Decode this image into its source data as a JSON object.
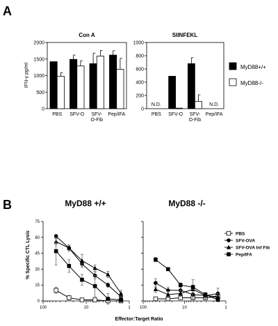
{
  "panels": {
    "a": "A",
    "b": "B"
  },
  "chart_data": [
    {
      "type": "bar",
      "title": "Con A",
      "ylabel": "IFN-γ pg/ml",
      "ylim": [
        0,
        2000
      ],
      "yticks": [
        0,
        500,
        1000,
        1500,
        2000
      ],
      "categories": [
        "PBS",
        "SFV-O",
        "SFV-\nO-Fib",
        "Pep/IFA"
      ],
      "series": [
        {
          "name": "MyD88+/+",
          "color": "#000000",
          "values": [
            1420,
            1490,
            1360,
            1620
          ],
          "errors": [
            0,
            130,
            320,
            130
          ]
        },
        {
          "name": "MyD88-/-",
          "color": "#ffffff",
          "values": [
            980,
            1290,
            1590,
            1190
          ],
          "errors": [
            110,
            160,
            170,
            330
          ]
        }
      ]
    },
    {
      "type": "bar",
      "title": "SIINFEKL",
      "ylim": [
        0,
        1000
      ],
      "yticks": [
        0,
        200,
        400,
        600,
        800,
        1000
      ],
      "categories": [
        "PBS",
        "SFV-O",
        "SFV-\nO-Fib",
        "Pep/IFA"
      ],
      "na_label": "N.D.",
      "series": [
        {
          "name": "MyD88+/+",
          "color": "#000000",
          "values": [
            null,
            490,
            680,
            null
          ],
          "errors": [
            0,
            0,
            90,
            0
          ]
        },
        {
          "name": "MyD88-/-",
          "color": "#ffffff",
          "values": [
            null,
            8,
            110,
            null
          ],
          "errors": [
            0,
            0,
            100,
            0
          ]
        }
      ]
    },
    {
      "type": "line",
      "title": "MyD88 +/+",
      "xlabel": "Effector:Target Ratio",
      "ylabel": "% Specific CTL Lysis",
      "xscale": "log",
      "xreversed": true,
      "xlim": [
        100,
        1
      ],
      "ylim": [
        0,
        75
      ],
      "yticks": [
        0,
        15,
        30,
        45,
        60,
        75
      ],
      "xticks": [
        100,
        10,
        1
      ],
      "x": [
        50,
        25,
        12.5,
        6.25,
        3.125,
        1.56
      ],
      "series": [
        {
          "name": "PBS",
          "marker": "square-open",
          "values": [
            10,
            3,
            1,
            1,
            0,
            0
          ],
          "errors": [
            3,
            2,
            1,
            1,
            1,
            1
          ]
        },
        {
          "name": "SFV-OVA",
          "marker": "circle",
          "values": [
            61,
            50,
            35,
            24,
            15,
            4
          ],
          "errors": [
            2,
            2,
            3,
            3,
            2,
            2
          ]
        },
        {
          "name": "SFV-OVA Inf Fib",
          "marker": "triangle",
          "values": [
            56,
            50,
            38,
            31,
            25,
            7
          ],
          "errors": [
            3,
            3,
            6,
            3,
            3,
            3
          ]
        },
        {
          "name": "Pep/IFA",
          "marker": "square",
          "values": [
            47,
            33,
            20,
            14,
            2,
            1
          ],
          "errors": [
            13,
            6,
            5,
            10,
            5,
            2
          ]
        }
      ]
    },
    {
      "type": "line",
      "title": "MyD88 -/-",
      "xscale": "log",
      "xreversed": true,
      "xlim": [
        100,
        1
      ],
      "ylim": [
        0,
        75
      ],
      "xticks": [
        100,
        10,
        1
      ],
      "x": [
        50,
        25,
        12.5,
        6.25,
        3.125,
        1.56
      ],
      "series": [
        {
          "name": "PBS",
          "marker": "square-open",
          "values": [
            2,
            2,
            3,
            3,
            3,
            4
          ],
          "errors": [
            1,
            1,
            1,
            1,
            1,
            1
          ]
        },
        {
          "name": "SFV-OVA",
          "marker": "circle",
          "values": [
            17,
            10,
            10,
            6,
            5,
            7
          ],
          "errors": [
            4,
            3,
            3,
            2,
            2,
            5
          ]
        },
        {
          "name": "SFV-OVA Inf Fib",
          "marker": "triangle",
          "values": [
            11,
            6,
            7,
            11,
            5,
            4
          ],
          "errors": [
            3,
            3,
            3,
            9,
            3,
            3
          ]
        },
        {
          "name": "Pep/IFA",
          "marker": "square",
          "values": [
            39,
            30,
            15,
            13,
            6,
            1
          ],
          "errors": [
            2,
            1,
            2,
            2,
            2,
            1
          ]
        }
      ]
    }
  ]
}
